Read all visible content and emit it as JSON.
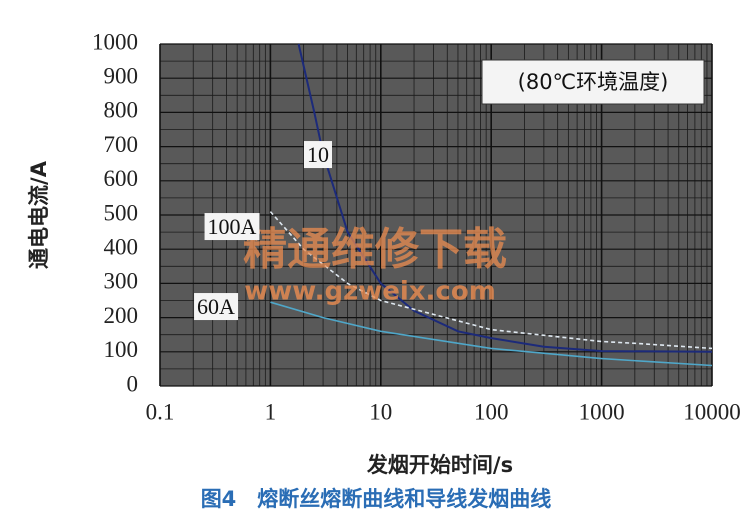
{
  "chart_data": {
    "type": "line",
    "caption": "图4　熔断丝熔断曲线和导线发烟曲线",
    "annotation": "(80℃环境温度)",
    "watermark": [
      "精通维修下载",
      "www.gzweix.com"
    ],
    "xlabel": "发烟开始时间/s",
    "ylabel": "通电电流/A",
    "xscale": "log",
    "xlim": [
      0.1,
      10000
    ],
    "xticks": [
      0.1,
      1,
      10,
      100,
      1000,
      10000
    ],
    "ylim": [
      0,
      1000
    ],
    "yticks": [
      0,
      100,
      200,
      300,
      400,
      500,
      600,
      700,
      800,
      900,
      1000
    ],
    "grid": true,
    "series": [
      {
        "name": "10",
        "color": "#1c2a7a",
        "x": [
          1.8,
          2.5,
          3,
          5,
          10,
          20,
          50,
          100,
          300,
          1000,
          10000
        ],
        "values": [
          1000,
          800,
          680,
          450,
          300,
          220,
          160,
          140,
          115,
          102,
          100
        ]
      },
      {
        "name": "100A",
        "color": "#dfe8f0",
        "x": [
          1,
          2,
          5,
          10,
          100,
          1000,
          2000,
          10000
        ],
        "values": [
          510,
          400,
          300,
          250,
          165,
          130,
          125,
          110
        ]
      },
      {
        "name": "60A",
        "color": "#4fa7c9",
        "x": [
          1,
          3,
          10,
          100,
          1000,
          10000
        ],
        "values": [
          245,
          200,
          160,
          110,
          80,
          60
        ]
      }
    ]
  }
}
